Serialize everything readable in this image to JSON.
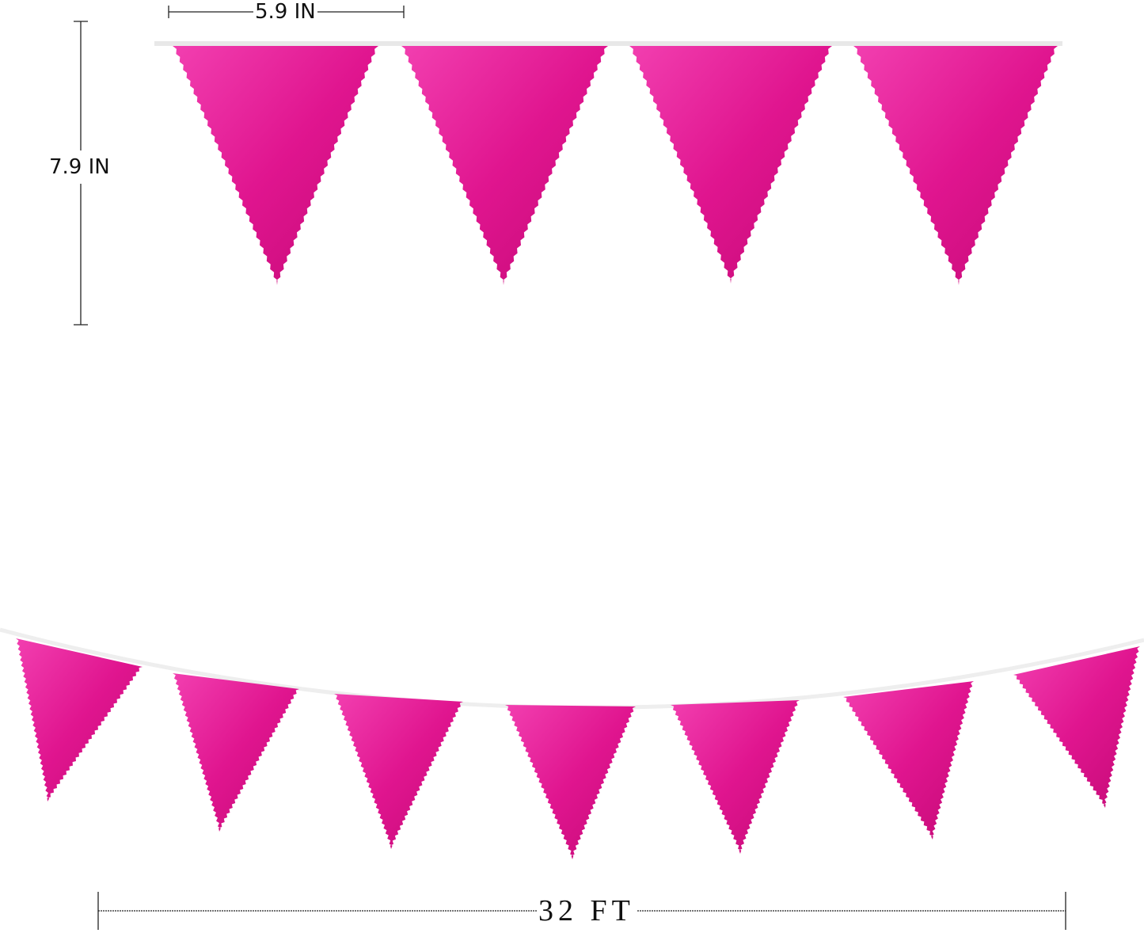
{
  "product": {
    "colors": {
      "flag": "#e0158f",
      "flag_light": "#f23fb0",
      "flag_dark": "#c40a76",
      "string": "#e8e8e8"
    },
    "top_row_flag_count": 4,
    "bottom_row_flag_count": 7
  },
  "dimensions": {
    "flag_width": "5.9 IN",
    "flag_height": "7.9 IN",
    "total_length": "32 FT"
  }
}
